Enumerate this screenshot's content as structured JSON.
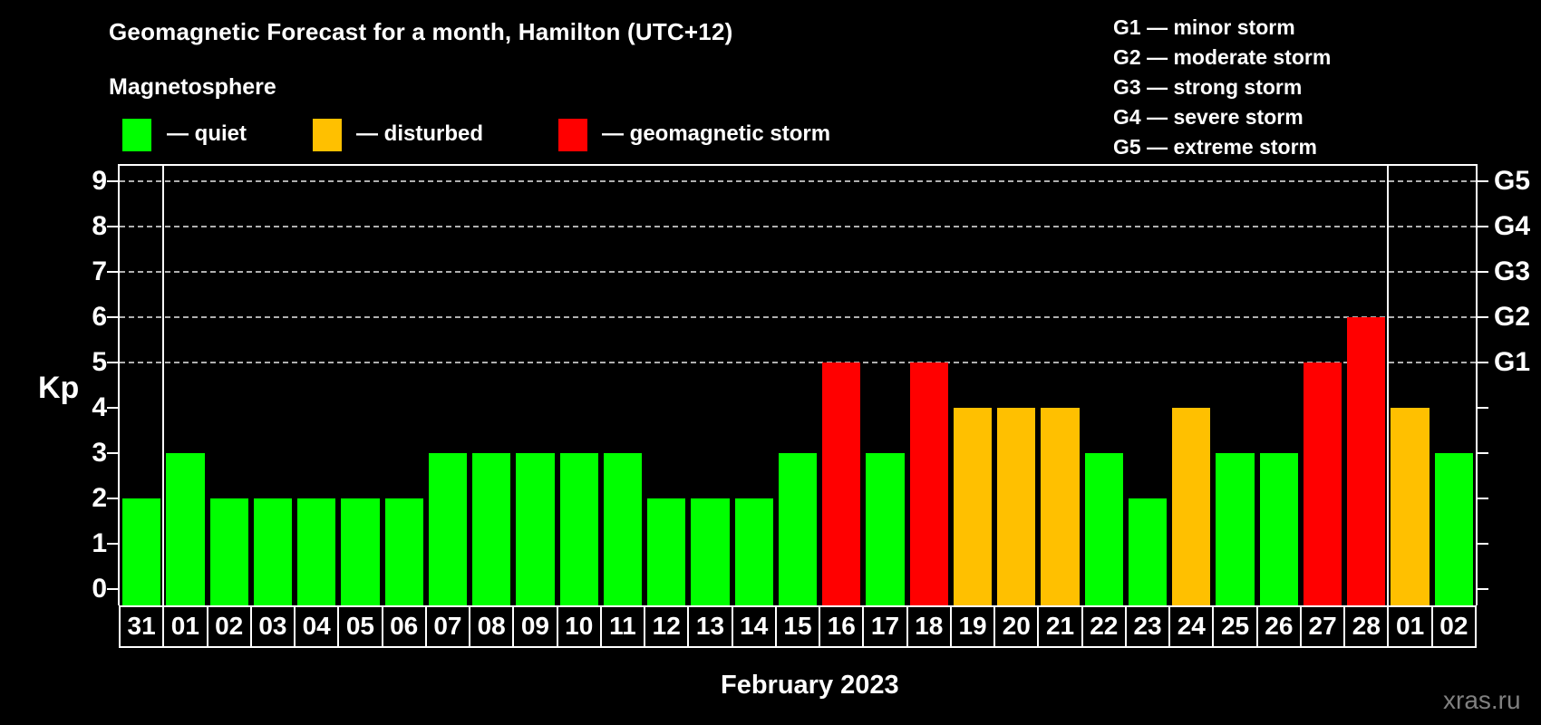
{
  "title": "Geomagnetic Forecast for a month, Hamilton (UTC+12)",
  "subtitle": "Magnetosphere",
  "magnetosphere_legend": [
    {
      "name": "quiet",
      "label": "— quiet",
      "color": "#00ff00"
    },
    {
      "name": "disturbed",
      "label": "— disturbed",
      "color": "#ffc000"
    },
    {
      "name": "storm",
      "label": "— geomagnetic storm",
      "color": "#ff0000"
    }
  ],
  "storm_scale_legend": [
    "G1 — minor storm",
    "G2 — moderate storm",
    "G3 — strong storm",
    "G4 — severe storm",
    "G5 — extreme storm"
  ],
  "watermark": "xras.ru",
  "chart_data": {
    "type": "bar",
    "title": "Geomagnetic Forecast for a month, Hamilton (UTC+12)",
    "ylabel": "Kp",
    "xlabel": "February 2023",
    "ylim": [
      0,
      9
    ],
    "y_ticks": [
      0,
      1,
      2,
      3,
      4,
      5,
      6,
      7,
      8,
      9
    ],
    "gridlines_at": [
      5,
      6,
      7,
      8,
      9
    ],
    "g_levels": [
      {
        "label": "G1",
        "kp": 5
      },
      {
        "label": "G2",
        "kp": 6
      },
      {
        "label": "G3",
        "kp": 7
      },
      {
        "label": "G4",
        "kp": 8
      },
      {
        "label": "G5",
        "kp": 9
      }
    ],
    "categories": [
      "31",
      "01",
      "02",
      "03",
      "04",
      "05",
      "06",
      "07",
      "08",
      "09",
      "10",
      "11",
      "12",
      "13",
      "14",
      "15",
      "16",
      "17",
      "18",
      "19",
      "20",
      "21",
      "22",
      "23",
      "24",
      "25",
      "26",
      "27",
      "28",
      "01",
      "02"
    ],
    "values": [
      2,
      3,
      2,
      2,
      2,
      2,
      2,
      3,
      3,
      3,
      3,
      3,
      2,
      2,
      2,
      3,
      5,
      3,
      5,
      4,
      4,
      4,
      3,
      2,
      4,
      3,
      3,
      5,
      6,
      4,
      3
    ],
    "statuses": [
      "quiet",
      "quiet",
      "quiet",
      "quiet",
      "quiet",
      "quiet",
      "quiet",
      "quiet",
      "quiet",
      "quiet",
      "quiet",
      "quiet",
      "quiet",
      "quiet",
      "quiet",
      "quiet",
      "storm",
      "quiet",
      "storm",
      "disturbed",
      "disturbed",
      "disturbed",
      "quiet",
      "quiet",
      "disturbed",
      "quiet",
      "quiet",
      "storm",
      "storm",
      "disturbed",
      "quiet"
    ],
    "colors": {
      "quiet": "#00ff00",
      "disturbed": "#ffc000",
      "storm": "#ff0000"
    },
    "month_separators_before_index": [
      1,
      29
    ],
    "grid": "dashed-horizontal-5-to-9",
    "legend_position": "top-left"
  }
}
